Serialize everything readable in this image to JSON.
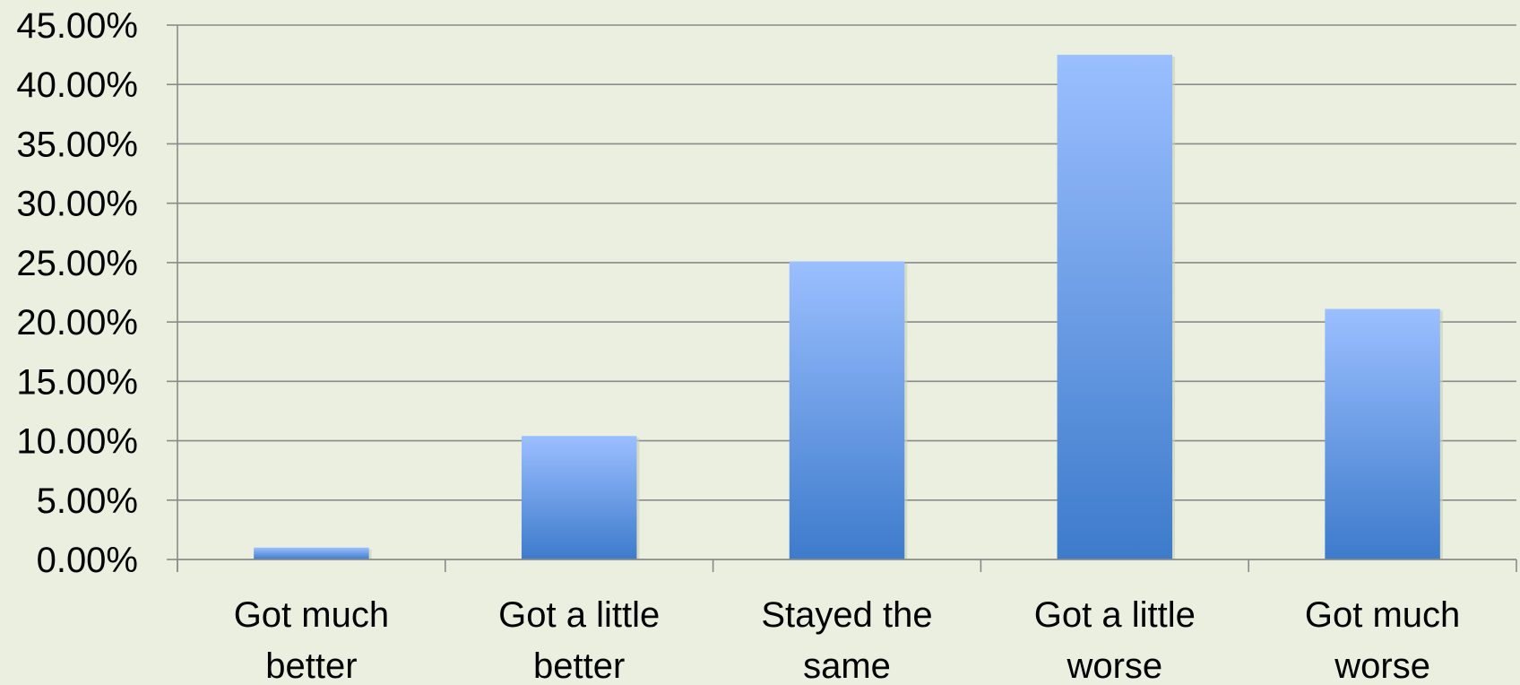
{
  "chart_data": {
    "type": "bar",
    "categories": [
      [
        "Got much",
        "better"
      ],
      [
        "Got a little",
        "better"
      ],
      [
        "Stayed the",
        "same"
      ],
      [
        "Got a little",
        "worse"
      ],
      [
        "Got much",
        "worse"
      ]
    ],
    "values": [
      1.0,
      10.4,
      25.1,
      42.5,
      21.1
    ],
    "yticks": [
      "0.00%",
      "5.00%",
      "10.00%",
      "15.00%",
      "20.00%",
      "25.00%",
      "30.00%",
      "35.00%",
      "40.00%",
      "45.00%"
    ],
    "ylim": [
      0,
      45
    ],
    "grid": true,
    "title": "",
    "xlabel": "",
    "ylabel": "",
    "colors": {
      "background": "#ebefdf",
      "bar_top": "#9bbfff",
      "bar_bottom": "#3d7bcb",
      "grid": "#8a8a8a"
    }
  }
}
